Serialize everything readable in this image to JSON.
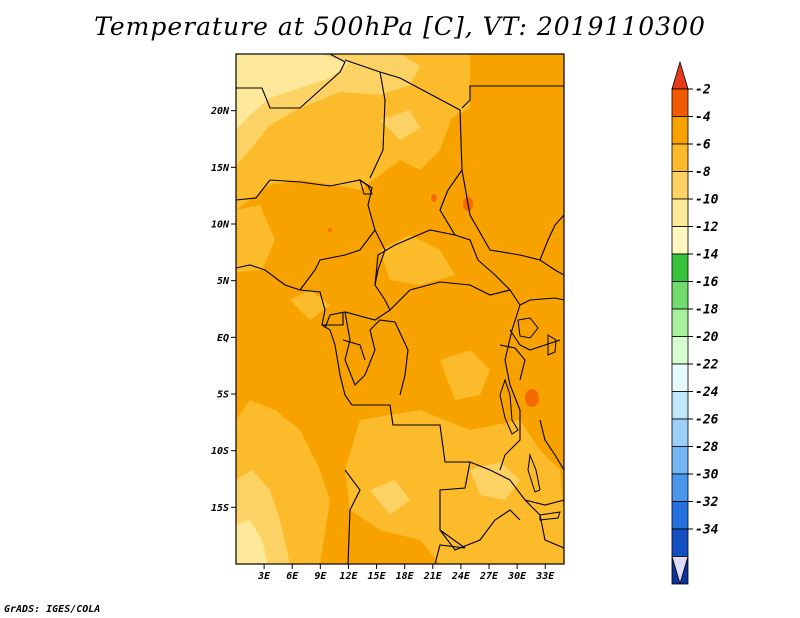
{
  "title": "Temperature at 500hPa [C], VT: 2019110300",
  "footer": "GrADS: IGES/COLA",
  "map": {
    "lat_labels": [
      "20N",
      "15N",
      "10N",
      "5N",
      "EQ",
      "5S",
      "10S",
      "15S"
    ],
    "lon_labels": [
      "3E",
      "6E",
      "9E",
      "12E",
      "15E",
      "18E",
      "21E",
      "24E",
      "27E",
      "30E",
      "33E"
    ],
    "lat_values": [
      20,
      15,
      10,
      5,
      0,
      -5,
      -10,
      -15
    ],
    "lon_values": [
      3,
      6,
      9,
      12,
      15,
      18,
      21,
      24,
      27,
      30,
      33
    ],
    "lon_range": [
      0,
      35
    ],
    "lat_range": [
      -20,
      25
    ],
    "base_color": "#f8a200",
    "colors": {
      "minus4_to_minus2": "#f8a200",
      "minus6_to_minus4": "#fbbb2a",
      "minus8_to_minus6": "#fdd264",
      "minus10_to_minus8": "#fee89a",
      "minus2_to_0": "#f66b00"
    }
  },
  "colorbar": {
    "labels": [
      "-2",
      "-4",
      "-6",
      "-8",
      "-10",
      "-12",
      "-14",
      "-16",
      "-18",
      "-20",
      "-22",
      "-24",
      "-26",
      "-28",
      "-30",
      "-32",
      "-34"
    ],
    "colors": [
      "#f25a00",
      "#f8a200",
      "#fbbb2a",
      "#fdd264",
      "#fee89a",
      "#fff8c0",
      "#37c33b",
      "#72dd6e",
      "#a6f09b",
      "#d6fcd0",
      "#e7fbfe",
      "#bfe7f9",
      "#9dd0f8",
      "#74b6f2",
      "#4a97ec",
      "#2271df",
      "#1350c2",
      "#0c3399"
    ],
    "top_arrow_color": "#e83a1c",
    "bottom_arrow_color": "#e0dcf5"
  }
}
